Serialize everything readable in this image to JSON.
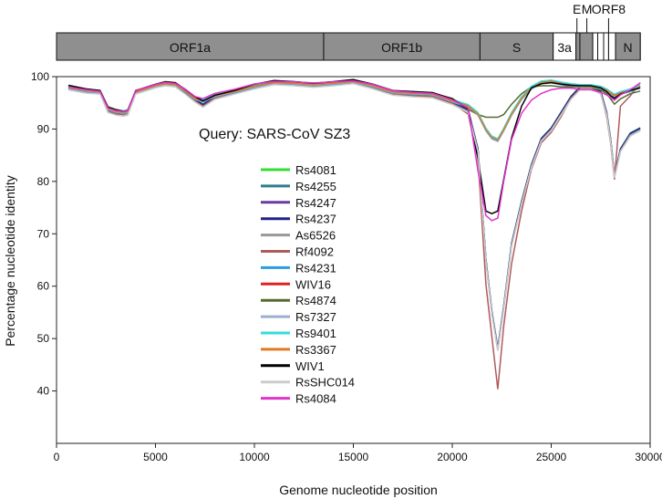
{
  "genome_map": {
    "segments": [
      {
        "label": "ORF1a",
        "start": 0,
        "end": 13500,
        "fill": "#8f8f8f"
      },
      {
        "label": "ORF1b",
        "start": 13500,
        "end": 21400,
        "fill": "#8f8f8f"
      },
      {
        "label": "S",
        "start": 21400,
        "end": 25100,
        "fill": "#8f8f8f"
      },
      {
        "label": "3a",
        "start": 25100,
        "end": 26250,
        "fill": "#ffffff"
      },
      {
        "label": "",
        "start": 26250,
        "end": 26450,
        "fill": "#8f8f8f"
      },
      {
        "label": "",
        "start": 26450,
        "end": 27100,
        "fill": "#8f8f8f"
      },
      {
        "label": "",
        "start": 27100,
        "end": 27350,
        "fill": "#ffffff"
      },
      {
        "label": "",
        "start": 27350,
        "end": 27650,
        "fill": "#ffffff"
      },
      {
        "label": "",
        "start": 27650,
        "end": 27900,
        "fill": "#ffffff"
      },
      {
        "label": "",
        "start": 27900,
        "end": 28250,
        "fill": "#ffffff"
      },
      {
        "label": "",
        "start": 28250,
        "end": 29500,
        "fill": "#8f8f8f"
      },
      {
        "label": "N",
        "start": 28250,
        "end": 29500,
        "fill": "#8f8f8f"
      }
    ],
    "callouts": [
      {
        "label": "E",
        "at": 26300
      },
      {
        "label": "M",
        "at": 26800
      },
      {
        "label": "ORF8",
        "at": 27900
      }
    ]
  },
  "chart_data": {
    "type": "line",
    "title": "Query: SARS-CoV SZ3",
    "xlabel": "Genome nucleotide position",
    "ylabel": "Percentage nucleotide identity",
    "xlim": [
      0,
      30000
    ],
    "ylim": [
      30,
      100
    ],
    "xticks": [
      0,
      5000,
      10000,
      15000,
      20000,
      25000,
      30000
    ],
    "yticks": [
      40,
      50,
      60,
      70,
      80,
      90,
      100
    ],
    "grid": false,
    "legend_position": "center-left",
    "x": [
      600,
      1500,
      2200,
      2600,
      3000,
      3400,
      3600,
      4000,
      4500,
      5000,
      5500,
      6000,
      6500,
      7000,
      7400,
      8000,
      9000,
      10000,
      11000,
      12000,
      13000,
      14000,
      15000,
      16000,
      17000,
      18000,
      19000,
      20000,
      20800,
      21300,
      21700,
      22000,
      22300,
      22600,
      23000,
      23500,
      24000,
      24500,
      25000,
      25500,
      26000,
      26500,
      27000,
      27500,
      27800,
      28000,
      28200,
      28500,
      29000,
      29500
    ],
    "series": [
      {
        "name": "Rs4081",
        "color": "#33dd33",
        "group": "A"
      },
      {
        "name": "Rs4255",
        "color": "#2a7f8c",
        "group": "A"
      },
      {
        "name": "Rs4247",
        "color": "#6a3aa0",
        "group": "A"
      },
      {
        "name": "Rs4237",
        "color": "#22228a",
        "group": "A"
      },
      {
        "name": "As6526",
        "color": "#999999",
        "group": "A"
      },
      {
        "name": "Rf4092",
        "color": "#b05a5a",
        "group": "Rf"
      },
      {
        "name": "Rs4231",
        "color": "#2a9ee0",
        "group": "B"
      },
      {
        "name": "WIV16",
        "color": "#dd2222",
        "group": "B"
      },
      {
        "name": "Rs4874",
        "color": "#556b2f",
        "group": "C"
      },
      {
        "name": "Rs7327",
        "color": "#9ab0d0",
        "group": "B"
      },
      {
        "name": "Rs9401",
        "color": "#33dddd",
        "group": "B"
      },
      {
        "name": "Rs3367",
        "color": "#e07a22",
        "group": "B"
      },
      {
        "name": "WIV1",
        "color": "#000000",
        "group": "B"
      },
      {
        "name": "RsSHC014",
        "color": "#cccccc",
        "group": "A"
      },
      {
        "name": "Rs4084",
        "color": "#e033cc",
        "group": "D"
      }
    ],
    "profiles": {
      "A": [
        97.8,
        97.2,
        97.0,
        93.5,
        93.0,
        92.8,
        93.0,
        97.0,
        97.6,
        98.2,
        98.6,
        98.4,
        97.0,
        95.5,
        94.5,
        96.0,
        97.0,
        98.0,
        98.8,
        98.6,
        98.3,
        98.6,
        99.0,
        98.0,
        96.8,
        96.5,
        96.3,
        95.0,
        93.5,
        86.0,
        65.0,
        55.0,
        48.0,
        56.0,
        68.0,
        76.0,
        83.0,
        88.0,
        90.0,
        93.0,
        96.0,
        98.0,
        98.0,
        97.0,
        93.0,
        88.0,
        81.0,
        86.0,
        89.0,
        90.0
      ],
      "Rf": [
        97.6,
        97.0,
        96.8,
        93.0,
        92.5,
        92.5,
        92.8,
        96.8,
        97.4,
        98.0,
        98.2,
        98.0,
        96.5,
        95.0,
        94.0,
        95.6,
        96.6,
        97.6,
        98.4,
        98.2,
        98.0,
        98.3,
        98.6,
        97.6,
        96.2,
        96.0,
        95.8,
        94.6,
        92.5,
        84.0,
        60.0,
        50.0,
        40.0,
        52.0,
        64.0,
        74.0,
        82.0,
        87.0,
        89.0,
        92.0,
        95.5,
        97.5,
        97.5,
        96.5,
        92.0,
        87.0,
        80.0,
        94.0,
        96.0,
        98.5
      ],
      "B": [
        98.0,
        97.5,
        97.2,
        94.0,
        93.5,
        93.3,
        93.5,
        97.2,
        97.8,
        98.4,
        98.8,
        98.6,
        97.5,
        96.0,
        95.5,
        96.5,
        97.3,
        98.3,
        99.0,
        98.9,
        98.6,
        98.9,
        99.2,
        98.4,
        97.2,
        97.0,
        96.8,
        95.5,
        94.5,
        93.0,
        90.0,
        88.5,
        88.0,
        90.0,
        93.0,
        96.0,
        98.0,
        99.0,
        99.2,
        98.8,
        98.5,
        98.3,
        98.3,
        98.0,
        97.5,
        97.0,
        96.5,
        97.0,
        97.5,
        98.2
      ],
      "C": [
        98.0,
        97.4,
        97.1,
        94.0,
        93.5,
        93.2,
        93.4,
        97.0,
        97.6,
        98.2,
        98.7,
        98.5,
        97.3,
        95.8,
        95.0,
        96.2,
        97.1,
        98.1,
        98.8,
        98.6,
        98.4,
        98.7,
        99.0,
        98.2,
        97.0,
        96.8,
        96.6,
        95.6,
        93.5,
        92.5,
        92.0,
        92.0,
        92.0,
        92.5,
        94.5,
        96.5,
        97.8,
        98.0,
        98.0,
        97.8,
        97.8,
        97.7,
        97.6,
        97.2,
        96.5,
        95.5,
        94.5,
        95.5,
        96.5,
        97.0
      ],
      "WIV1": [
        98.0,
        97.3,
        97.0,
        93.8,
        93.3,
        93.0,
        93.2,
        97.0,
        97.6,
        98.2,
        98.7,
        98.5,
        97.2,
        95.8,
        95.0,
        96.1,
        97.0,
        98.2,
        98.9,
        98.7,
        98.4,
        98.7,
        99.1,
        98.2,
        97.0,
        96.8,
        96.6,
        95.4,
        93.5,
        84.0,
        74.0,
        73.5,
        74.0,
        80.0,
        88.0,
        94.0,
        97.5,
        98.3,
        98.5,
        98.2,
        98.0,
        97.9,
        97.9,
        97.5,
        96.8,
        96.0,
        95.5,
        96.3,
        97.0,
        97.5
      ],
      "D": [
        98.0,
        97.5,
        97.2,
        94.0,
        93.5,
        93.3,
        93.5,
        97.4,
        97.9,
        98.5,
        98.9,
        98.7,
        97.6,
        96.2,
        95.8,
        96.8,
        97.6,
        98.6,
        99.1,
        99.0,
        98.8,
        99.0,
        99.2,
        98.5,
        97.3,
        97.0,
        96.8,
        95.6,
        94.0,
        82.0,
        73.5,
        72.5,
        73.0,
        80.0,
        88.0,
        93.0,
        95.5,
        96.8,
        97.5,
        97.8,
        97.8,
        97.5,
        97.5,
        97.0,
        96.5,
        96.0,
        95.5,
        96.5,
        97.5,
        98.8
      ]
    },
    "wiv1_series": "WIV1"
  }
}
